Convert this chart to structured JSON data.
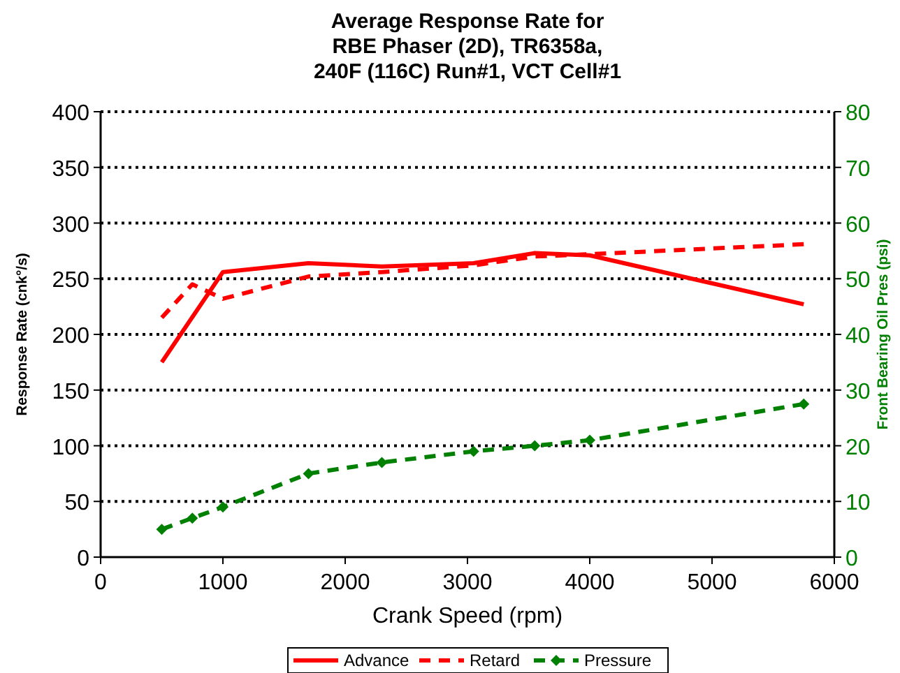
{
  "chart_data": {
    "type": "line",
    "title": "Average Response Rate for\nRBE Phaser (2D), TR6358a,\n240F (116C) Run#1, VCT Cell#1",
    "xlabel": "Crank Speed (rpm)",
    "ylabel": "Response Rate (cnk°/s)",
    "y2label": "Front Bearing Oil Pres (psi)",
    "x": [
      500,
      750,
      1000,
      1700,
      2300,
      3050,
      3550,
      4000,
      5750
    ],
    "series": [
      {
        "name": "Advance",
        "color": "#ff0000",
        "line_style": "solid",
        "marker": "none",
        "x": [
          500,
          1000,
          1700,
          2300,
          3050,
          3550,
          4000,
          5750
        ],
        "values": [
          175,
          256,
          264,
          261,
          264,
          273,
          271,
          227
        ]
      },
      {
        "name": "Retard",
        "color": "#ff0000",
        "line_style": "dashed",
        "marker": "none",
        "values": [
          215,
          245,
          232,
          252,
          256,
          262,
          270,
          272,
          281
        ]
      },
      {
        "name": "Pressure",
        "color": "#008000",
        "line_style": "dashed",
        "marker": "diamond",
        "axis": "y2",
        "values": [
          5,
          7,
          9,
          15,
          17,
          19,
          20,
          21,
          27.5
        ]
      }
    ],
    "xlim": [
      0,
      6000
    ],
    "xticks": [
      0,
      1000,
      2000,
      3000,
      4000,
      5000,
      6000
    ],
    "ylim": [
      0,
      400
    ],
    "yticks": [
      0,
      50,
      100,
      150,
      200,
      250,
      300,
      350,
      400
    ],
    "y2lim": [
      0,
      80
    ],
    "y2ticks": [
      0,
      10,
      20,
      30,
      40,
      50,
      60,
      70,
      80
    ],
    "grid": "y",
    "legend": "bottom"
  }
}
